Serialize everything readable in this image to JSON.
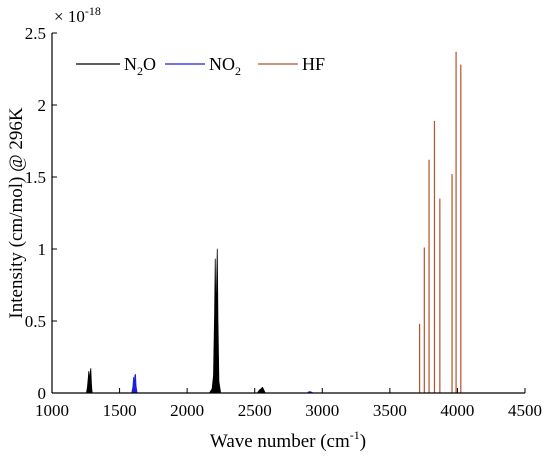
{
  "chart_data": {
    "type": "line",
    "title": "",
    "xlabel": "Wave number (cm",
    "xlabel_sup": "-1",
    "xlabel_close": ")",
    "ylabel": "Intensity (cm/mol) @ 296K",
    "y_multiplier_base": "× 10",
    "y_multiplier_exp": "-18",
    "xlim": [
      1000,
      4500
    ],
    "ylim": [
      0,
      2.5
    ],
    "x_ticks": [
      1000,
      1500,
      2000,
      2500,
      3000,
      3500,
      4000,
      4500
    ],
    "x_tick_labels": [
      "1000",
      "1500",
      "2000",
      "2500",
      "3000",
      "3500",
      "4000",
      "4500"
    ],
    "y_ticks": [
      0,
      0.5,
      1,
      1.5,
      2,
      2.5
    ],
    "y_tick_labels": [
      "0",
      "0.5",
      "1",
      "1.5",
      "2",
      "2.5"
    ],
    "grid": false,
    "legend_position": "top-left",
    "series": [
      {
        "name": "N2O",
        "legend_main": "N",
        "legend_sub": "2",
        "legend_tail": "O",
        "color": "#000000",
        "style": "filled-spikes",
        "points": [
          [
            1255,
            0.0
          ],
          [
            1262,
            0.04
          ],
          [
            1268,
            0.1
          ],
          [
            1272,
            0.15
          ],
          [
            1276,
            0.08
          ],
          [
            1282,
            0.14
          ],
          [
            1287,
            0.17
          ],
          [
            1292,
            0.06
          ],
          [
            1297,
            0.0
          ],
          [
            2165,
            0.0
          ],
          [
            2185,
            0.03
          ],
          [
            2195,
            0.12
          ],
          [
            2203,
            0.55
          ],
          [
            2208,
            0.93
          ],
          [
            2213,
            0.5
          ],
          [
            2218,
            0.75
          ],
          [
            2223,
            1.0
          ],
          [
            2228,
            0.5
          ],
          [
            2235,
            0.08
          ],
          [
            2248,
            0.0
          ],
          [
            2520,
            0.0
          ],
          [
            2535,
            0.02
          ],
          [
            2548,
            0.03
          ],
          [
            2558,
            0.04
          ],
          [
            2568,
            0.02
          ],
          [
            2578,
            0.0
          ]
        ]
      },
      {
        "name": "NO2",
        "legend_main": "NO",
        "legend_sub": "2",
        "legend_tail": "",
        "color": "#1f1fd8",
        "style": "filled-spikes",
        "points": [
          [
            1590,
            0.0
          ],
          [
            1598,
            0.04
          ],
          [
            1604,
            0.11
          ],
          [
            1608,
            0.05
          ],
          [
            1613,
            0.12
          ],
          [
            1618,
            0.13
          ],
          [
            1622,
            0.05
          ],
          [
            1630,
            0.0
          ],
          [
            2890,
            0.0
          ],
          [
            2898,
            0.008
          ],
          [
            2910,
            0.01
          ],
          [
            2920,
            0.006
          ],
          [
            2930,
            0.0
          ]
        ]
      },
      {
        "name": "HF",
        "legend_main": "HF",
        "legend_sub": "",
        "legend_tail": "",
        "color": "#b5512a",
        "style": "stick",
        "sticks": [
          [
            3720,
            0.48
          ],
          [
            3755,
            1.01
          ],
          [
            3790,
            1.62
          ],
          [
            3830,
            1.89
          ],
          [
            3870,
            1.35
          ],
          [
            3960,
            1.52
          ],
          [
            3990,
            2.37
          ],
          [
            4025,
            2.28
          ]
        ]
      }
    ]
  }
}
